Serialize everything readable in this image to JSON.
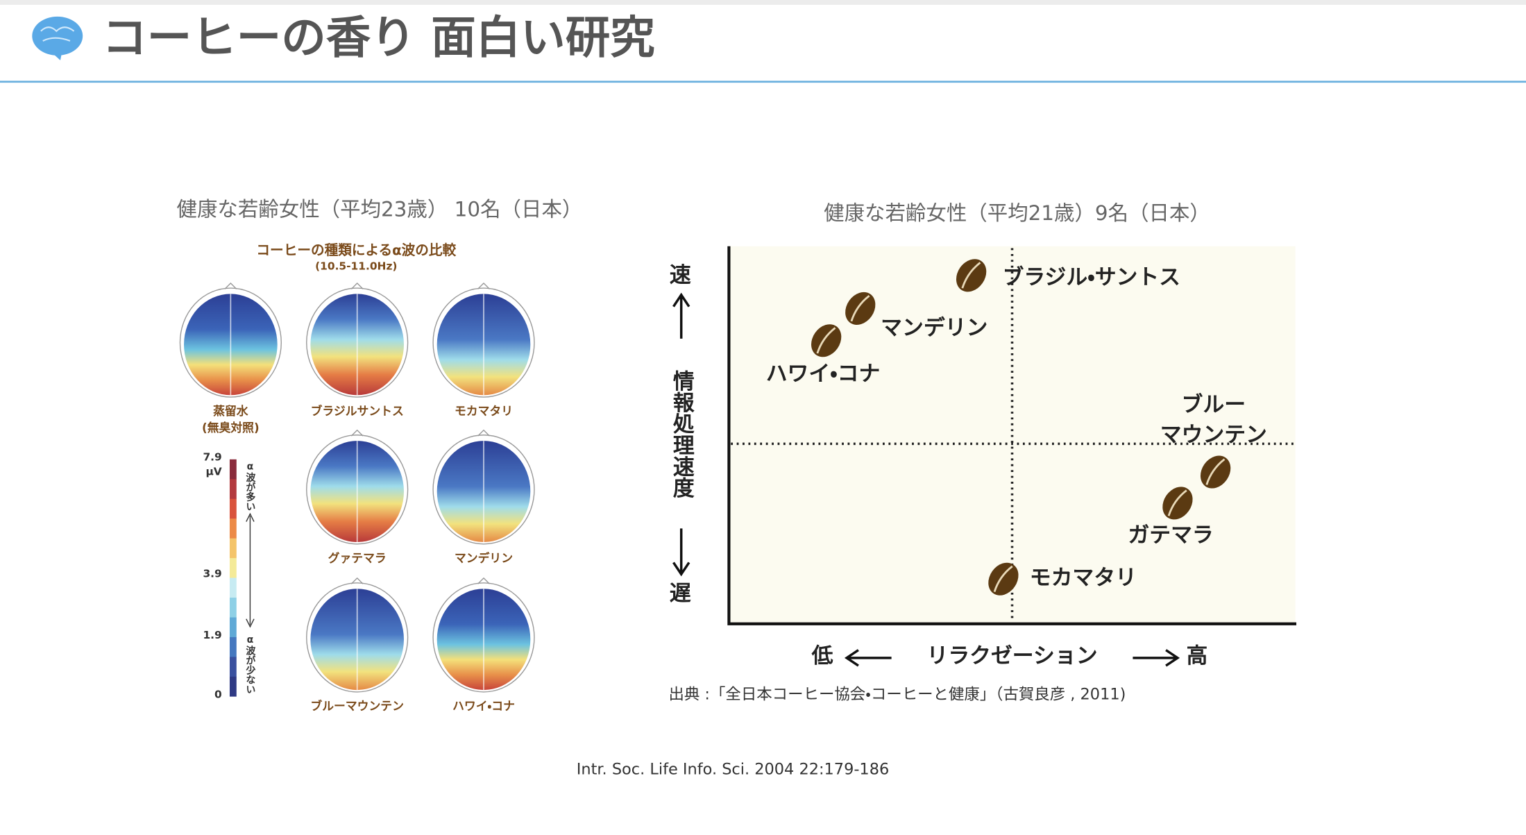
{
  "header": {
    "title": "コーヒーの香り 面白い研究"
  },
  "left": {
    "subtitle": "健康な若齢女性（平均23歳） 10名（日本）",
    "figure_title": "コーヒーの種類によるα波の比較",
    "figure_subtitle": "(10.5-11.0Hz)",
    "maps": [
      {
        "label": "蒸留水",
        "note": "(無臭対照)"
      },
      {
        "label": "ブラジルサントス"
      },
      {
        "label": "モカマタリ"
      },
      {
        "label": "グァテマラ"
      },
      {
        "label": "マンデリン"
      },
      {
        "label": "ブルーマウンテン"
      },
      {
        "label": "ハワイ・コナ"
      }
    ],
    "colorbar": {
      "unit": "μV",
      "ticks": [
        "7.9",
        "3.9",
        "1.9",
        "0"
      ],
      "high_note": "α波が多い",
      "low_note": "α波が少ない"
    }
  },
  "right": {
    "subtitle": "健康な若齢女性（平均21歳）9名（日本）",
    "y_axis": {
      "top": "速",
      "label": "情報処理速度",
      "bottom": "遅"
    },
    "x_axis": {
      "left": "低",
      "label": "リラクゼーション",
      "right": "高"
    },
    "items": [
      {
        "label": "ブラジル・サントス"
      },
      {
        "label": "マンデリン"
      },
      {
        "label": "ハワイ・コナ"
      },
      {
        "label": "ブルー",
        "label2": "マウンテン"
      },
      {
        "label": "ガテマラ"
      },
      {
        "label": "モカマタリ"
      }
    ],
    "source": "出典 :「全日本コーヒー協会・コーヒーと健康」（古賀良彦 , 2011)"
  },
  "footer": {
    "citation": "Intr. Soc. Life Info. Sci. 2004 22:179-186"
  }
}
